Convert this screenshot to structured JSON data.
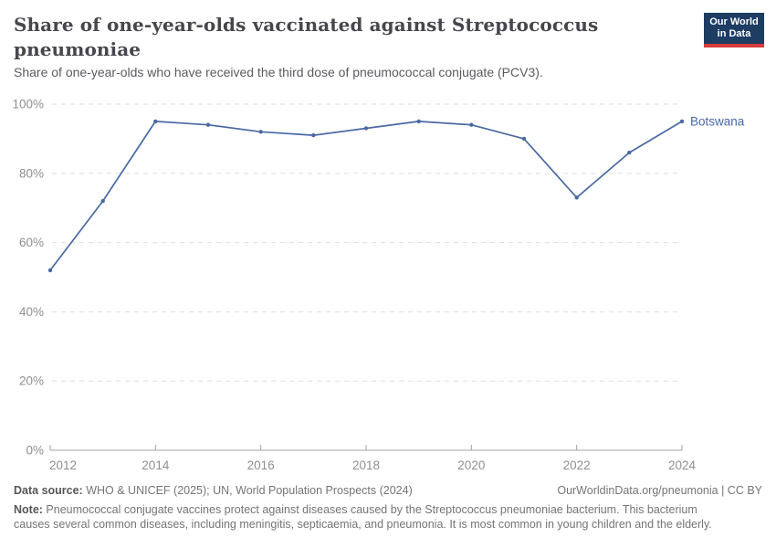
{
  "header": {
    "title": "Share of one-year-olds vaccinated against Streptococcus pneumoniae",
    "subtitle": "Share of one-year-olds who have received the third dose of pneumococcal conjugate (PCV3)."
  },
  "logo": {
    "line1": "Our World",
    "line2": "in Data",
    "bg_color": "#1d3d63",
    "stripe_color": "#d73c3c"
  },
  "chart_data": {
    "type": "line",
    "title": "Share of one-year-olds vaccinated against Streptococcus pneumoniae",
    "x": [
      2012,
      2013,
      2014,
      2015,
      2016,
      2017,
      2018,
      2019,
      2020,
      2021,
      2022,
      2023,
      2024
    ],
    "series": [
      {
        "name": "Botswana",
        "color": "#4a69a4",
        "values": [
          52,
          72,
          95,
          94,
          92,
          91,
          93,
          95,
          94,
          90,
          73,
          86,
          95
        ]
      }
    ],
    "xlabel": "",
    "ylabel": "",
    "xlim": [
      2012,
      2024
    ],
    "ylim": [
      0,
      100
    ],
    "yticks": [
      0,
      20,
      40,
      60,
      80,
      100
    ],
    "ytick_suffix": "%",
    "xticks": [
      2012,
      2014,
      2016,
      2018,
      2020,
      2022,
      2024
    ],
    "grid": "horizontal-dashed",
    "legend_position": "end-of-line-label",
    "gridline_color": "#dedede",
    "axis_color": "#a3a3a3",
    "tick_label_color": "#8f8f8f"
  },
  "footer": {
    "datasource_label": "Data source:",
    "datasource_text": " WHO & UNICEF (2025); UN, World Population Prospects (2024)",
    "link_text": "OurWorldinData.org/pneumonia | CC BY",
    "note_label": "Note:",
    "note_text": " Pneumococcal conjugate vaccines protect against diseases caused by the Streptococcus pneumoniae bacterium. This bacterium causes several common diseases, including meningitis, septicaemia, and pneumonia. It is most common in young children and the elderly."
  }
}
